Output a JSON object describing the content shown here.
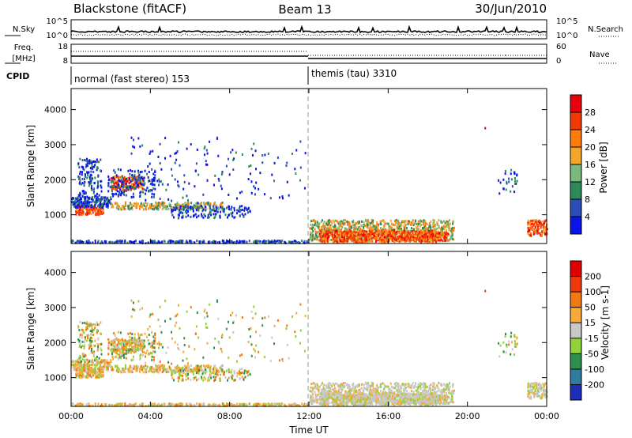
{
  "header": {
    "station": "Blackstone (fitACF)",
    "beam": "Beam 13",
    "date": "30/Jun/2010"
  },
  "noise_panel": {
    "left_label": "N.Sky",
    "left_ticks": [
      "10^5",
      "10^0"
    ],
    "right_label": "N.Search",
    "right_ticks": [
      "10^5",
      "10^0"
    ]
  },
  "freq_panel": {
    "left_label_1": "Freq.",
    "left_label_2": "[MHz]",
    "left_ticks": [
      "18",
      "8"
    ],
    "right_label": "Nave",
    "right_ticks": [
      "60",
      "0"
    ]
  },
  "cpid": {
    "label": "CPID",
    "segments": [
      {
        "text": "normal (fast stereo) 153",
        "start_hour": 0
      },
      {
        "text": "themis (tau) 3310",
        "start_hour": 12
      }
    ]
  },
  "chart_data": [
    {
      "type": "heatmap",
      "name": "power",
      "ylabel": "Slant Range [km]",
      "xlabel": "",
      "ylim": [
        180,
        4600
      ],
      "yticks": [
        "1000",
        "2000",
        "3000",
        "4000"
      ],
      "xlim": [
        0,
        24
      ],
      "colorbar": {
        "label": "Power [dB]",
        "ticks": [
          "4",
          "8",
          "12",
          "16",
          "20",
          "24",
          "28"
        ],
        "colors": [
          "#0a14e6",
          "#2a4db8",
          "#2d8a58",
          "#79b97c",
          "#f4a62a",
          "#ff7b0a",
          "#f23a06",
          "#e8000b"
        ]
      }
    },
    {
      "type": "heatmap",
      "name": "velocity",
      "ylabel": "Slant Range [km]",
      "xlabel": "Time UT",
      "ylim": [
        180,
        4600
      ],
      "yticks": [
        "1000",
        "2000",
        "3000",
        "4000"
      ],
      "xlim": [
        0,
        24
      ],
      "xticks": [
        "00:00",
        "04:00",
        "08:00",
        "12:00",
        "16:00",
        "20:00",
        "00:00"
      ],
      "colorbar": {
        "label": "Velocity [m s-1]",
        "ticks": [
          "200",
          "100",
          "50",
          "15",
          "-15",
          "-50",
          "-100",
          "-200"
        ],
        "colors": [
          "#1c2eb8",
          "#2e7da0",
          "#2f8f4c",
          "#8fd23a",
          "#c8c8c8",
          "#f7a93a",
          "#f07a10",
          "#ee3a0a",
          "#e00000"
        ]
      }
    }
  ]
}
